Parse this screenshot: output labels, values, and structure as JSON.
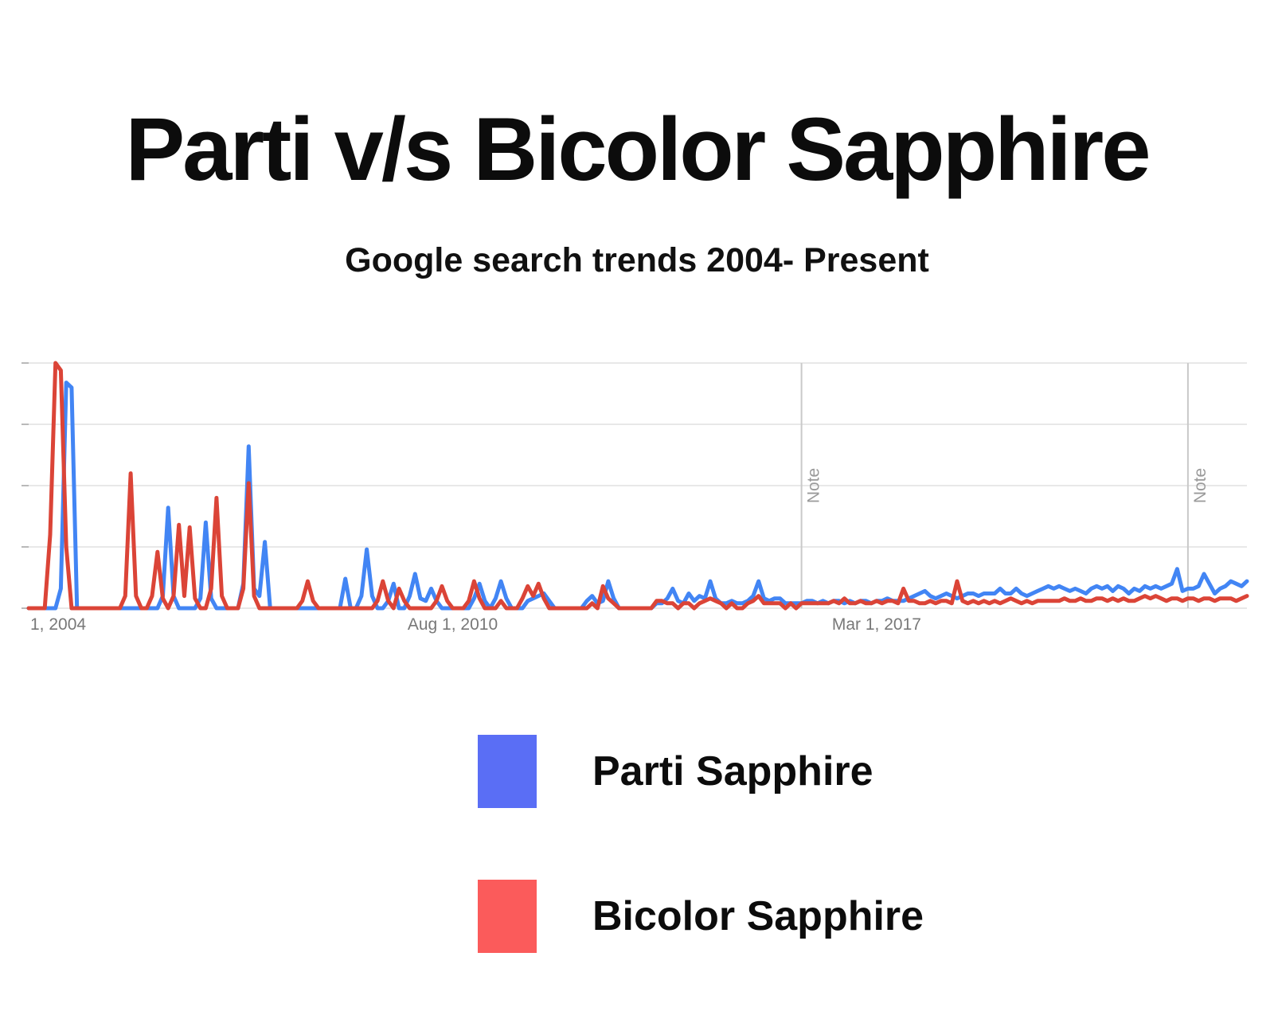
{
  "title": "Parti v/s Bicolor Sapphire",
  "subtitle": "Google search trends 2004- Present",
  "legend": {
    "items": [
      {
        "label": "Parti Sapphire",
        "color": "#5A6EF5"
      },
      {
        "label": "Bicolor Sapphire",
        "color": "#FB5B5B"
      }
    ]
  },
  "chart_data": {
    "type": "line",
    "x_unit": "month",
    "x_start": "Jan 2004",
    "x_end": "Dec 2022",
    "ylim": [
      0,
      100
    ],
    "grid_step": 25,
    "grid": "horizontal",
    "legend_position": "below",
    "xlabel_ticks": [
      {
        "label": "1, 2004",
        "month": 0,
        "align": "left"
      },
      {
        "label": "Aug 1, 2010",
        "month": 79,
        "align": "center"
      },
      {
        "label": "Mar 1, 2017",
        "month": 158,
        "align": "center"
      }
    ],
    "annotations": [
      {
        "label": "Note",
        "month": 144
      },
      {
        "label": "Note",
        "month": 216
      }
    ],
    "series": [
      {
        "name": "Parti Sapphire",
        "color": "#4285F4",
        "values": [
          0,
          0,
          0,
          0,
          0,
          0,
          8,
          92,
          90,
          0,
          0,
          0,
          0,
          0,
          0,
          0,
          0,
          0,
          0,
          0,
          0,
          0,
          0,
          0,
          0,
          5,
          41,
          5,
          0,
          0,
          0,
          0,
          4,
          35,
          4,
          0,
          0,
          0,
          0,
          0,
          10,
          66,
          8,
          5,
          27,
          0,
          0,
          0,
          0,
          0,
          0,
          0,
          0,
          0,
          0,
          0,
          0,
          0,
          0,
          12,
          0,
          0,
          5,
          24,
          5,
          0,
          0,
          3,
          10,
          0,
          0,
          5,
          14,
          4,
          3,
          8,
          3,
          0,
          0,
          0,
          0,
          0,
          0,
          4,
          10,
          3,
          0,
          4,
          11,
          4,
          0,
          0,
          0,
          3,
          4,
          5,
          6,
          3,
          0,
          0,
          0,
          0,
          0,
          0,
          3,
          5,
          2,
          3,
          11,
          4,
          0,
          0,
          0,
          0,
          0,
          0,
          0,
          2,
          2,
          4,
          8,
          3,
          2,
          6,
          3,
          5,
          4,
          11,
          4,
          2,
          2,
          3,
          2,
          2,
          3,
          5,
          11,
          4,
          3,
          4,
          4,
          2,
          2,
          2,
          2,
          3,
          3,
          2,
          3,
          2,
          3,
          3,
          2,
          3,
          2,
          3,
          3,
          2,
          3,
          3,
          4,
          3,
          3,
          3,
          4,
          5,
          6,
          7,
          5,
          4,
          5,
          6,
          5,
          4,
          5,
          6,
          6,
          5,
          6,
          6,
          6,
          8,
          6,
          6,
          8,
          6,
          5,
          6,
          7,
          8,
          9,
          8,
          9,
          8,
          7,
          8,
          7,
          6,
          8,
          9,
          8,
          9,
          7,
          9,
          8,
          6,
          8,
          7,
          9,
          8,
          9,
          8,
          9,
          10,
          16,
          7,
          8,
          8,
          9,
          14,
          10,
          6,
          8,
          9,
          11,
          10,
          9,
          11
        ]
      },
      {
        "name": "Bicolor Sapphire",
        "color": "#DB4437",
        "values": [
          0,
          0,
          0,
          0,
          30,
          100,
          97,
          25,
          0,
          0,
          0,
          0,
          0,
          0,
          0,
          0,
          0,
          0,
          5,
          55,
          5,
          0,
          0,
          5,
          23,
          4,
          0,
          5,
          34,
          5,
          33,
          4,
          0,
          0,
          8,
          45,
          5,
          0,
          0,
          0,
          8,
          51,
          5,
          0,
          0,
          0,
          0,
          0,
          0,
          0,
          0,
          3,
          11,
          3,
          0,
          0,
          0,
          0,
          0,
          0,
          0,
          0,
          0,
          0,
          0,
          3,
          11,
          3,
          0,
          8,
          3,
          0,
          0,
          0,
          0,
          0,
          3,
          9,
          3,
          0,
          0,
          0,
          3,
          11,
          4,
          0,
          0,
          0,
          3,
          0,
          0,
          0,
          4,
          9,
          5,
          10,
          4,
          0,
          0,
          0,
          0,
          0,
          0,
          0,
          0,
          2,
          0,
          9,
          4,
          2,
          0,
          0,
          0,
          0,
          0,
          0,
          0,
          3,
          3,
          2,
          2,
          0,
          2,
          2,
          0,
          2,
          3,
          4,
          3,
          2,
          0,
          2,
          0,
          0,
          2,
          3,
          5,
          2,
          2,
          2,
          2,
          0,
          2,
          0,
          2,
          2,
          2,
          2,
          2,
          2,
          3,
          2,
          4,
          2,
          2,
          3,
          2,
          2,
          3,
          2,
          3,
          3,
          2,
          8,
          3,
          3,
          2,
          2,
          3,
          2,
          3,
          3,
          2,
          11,
          3,
          2,
          3,
          2,
          3,
          2,
          3,
          2,
          3,
          4,
          3,
          2,
          3,
          2,
          3,
          3,
          3,
          3,
          3,
          4,
          3,
          3,
          4,
          3,
          3,
          4,
          4,
          3,
          4,
          3,
          4,
          3,
          3,
          4,
          5,
          4,
          5,
          4,
          3,
          4,
          4,
          3,
          4,
          4,
          3,
          4,
          4,
          3,
          4,
          4,
          4,
          3,
          4,
          5
        ]
      }
    ]
  }
}
